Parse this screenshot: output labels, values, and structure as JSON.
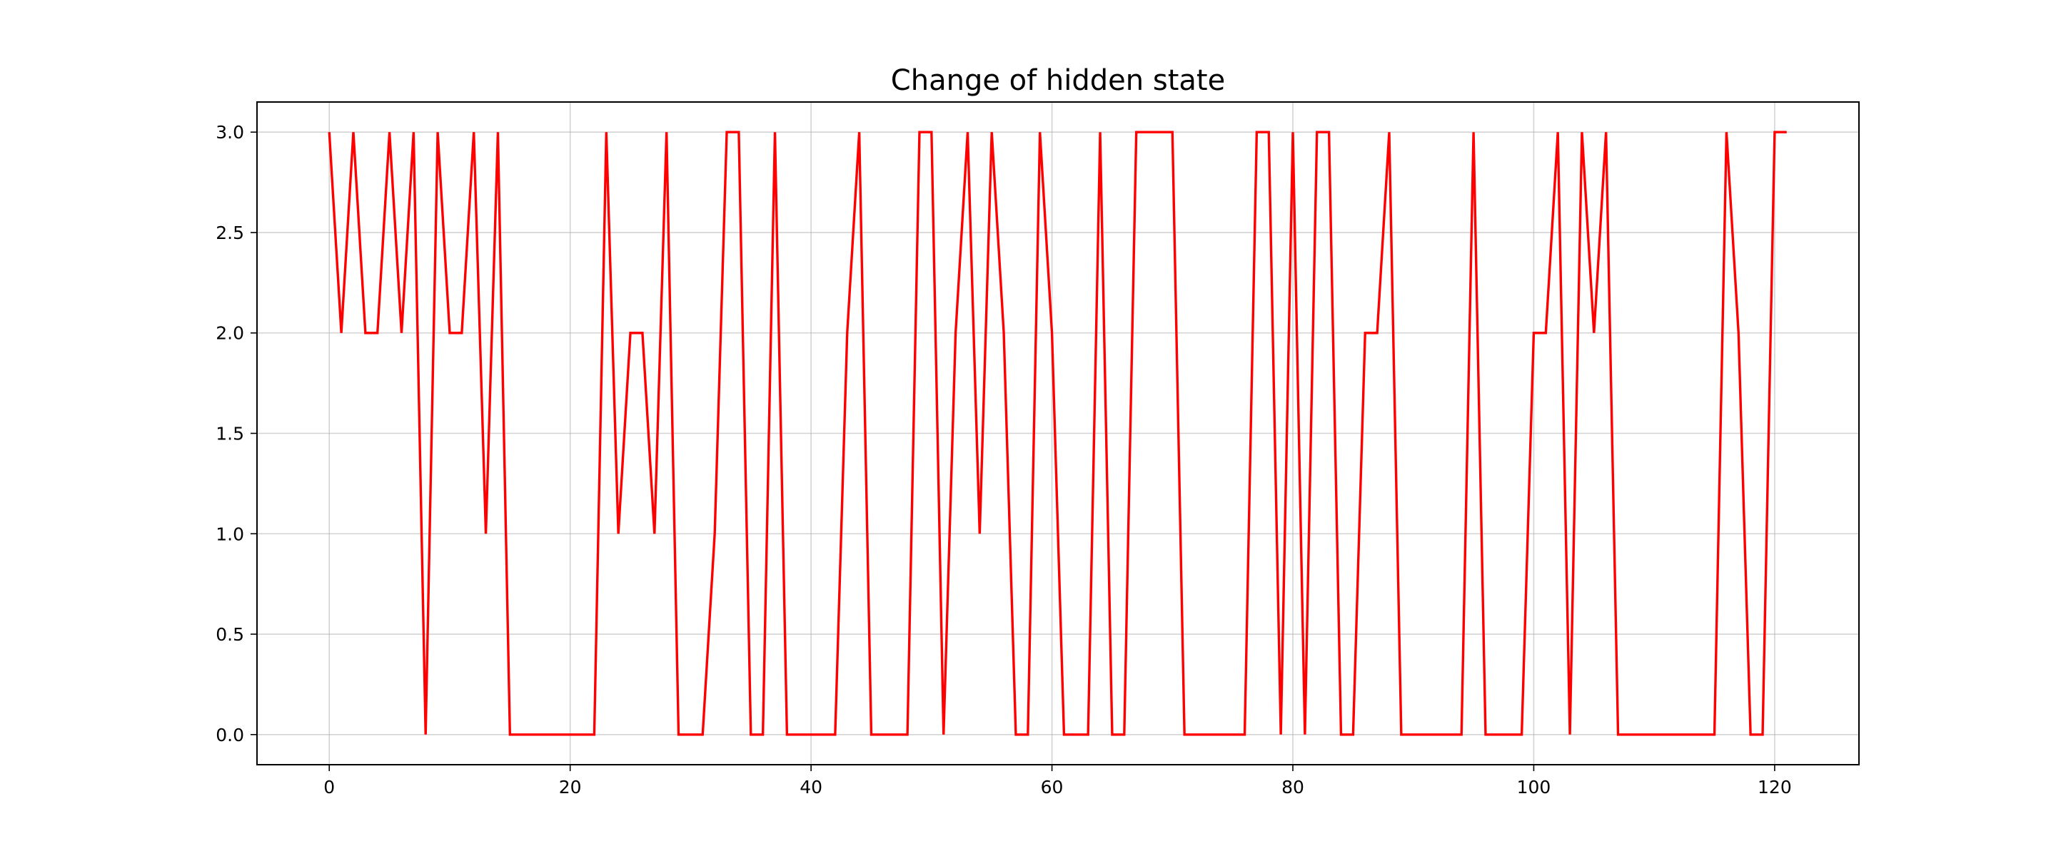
{
  "chart_data": {
    "type": "line",
    "title": "Change of hidden state",
    "xlabel": "",
    "ylabel": "",
    "xlim": [
      -6,
      127
    ],
    "ylim": [
      -0.15,
      3.15
    ],
    "xticks": [
      0,
      20,
      40,
      60,
      80,
      100,
      120
    ],
    "yticks": [
      0.0,
      0.5,
      1.0,
      1.5,
      2.0,
      2.5,
      3.0
    ],
    "grid": true,
    "series": [
      {
        "color": "#ff0000",
        "x": [
          0,
          1,
          2,
          3,
          4,
          5,
          6,
          7,
          8,
          9,
          10,
          11,
          12,
          13,
          14,
          15,
          16,
          17,
          18,
          19,
          20,
          21,
          22,
          23,
          24,
          25,
          26,
          27,
          28,
          29,
          30,
          31,
          32,
          33,
          34,
          35,
          36,
          37,
          38,
          39,
          40,
          41,
          42,
          43,
          44,
          45,
          46,
          47,
          48,
          49,
          50,
          51,
          52,
          53,
          54,
          55,
          56,
          57,
          58,
          59,
          60,
          61,
          62,
          63,
          64,
          65,
          66,
          67,
          68,
          69,
          70,
          71,
          72,
          73,
          74,
          75,
          76,
          77,
          78,
          79,
          80,
          81,
          82,
          83,
          84,
          85,
          86,
          87,
          88,
          89,
          90,
          91,
          92,
          93,
          94,
          95,
          96,
          97,
          98,
          99,
          100,
          101,
          102,
          103,
          104,
          105,
          106,
          107,
          108,
          109,
          110,
          111,
          112,
          113,
          114,
          115,
          116,
          117,
          118,
          119,
          120,
          121
        ],
        "y": [
          3,
          2,
          3,
          2,
          2,
          3,
          2,
          3,
          0,
          3,
          2,
          2,
          3,
          1,
          3,
          0,
          0,
          0,
          0,
          0,
          0,
          0,
          0,
          3,
          1,
          2,
          2,
          1,
          3,
          0,
          0,
          0,
          1,
          3,
          3,
          0,
          0,
          3,
          0,
          0,
          0,
          0,
          0,
          2,
          3,
          0,
          0,
          0,
          0,
          3,
          3,
          0,
          2,
          3,
          1,
          3,
          2,
          0,
          0,
          3,
          2,
          0,
          0,
          0,
          3,
          0,
          0,
          3,
          3,
          3,
          3,
          0,
          0,
          0,
          0,
          0,
          0,
          3,
          3,
          0,
          3,
          0,
          3,
          3,
          0,
          0,
          2,
          2,
          3,
          0,
          0,
          0,
          0,
          0,
          0,
          3,
          0,
          0,
          0,
          0,
          2,
          2,
          3,
          0,
          3,
          2,
          3,
          0,
          0,
          0,
          0,
          0,
          0,
          0,
          0,
          0,
          3,
          2,
          0,
          0,
          3,
          3
        ]
      }
    ]
  }
}
